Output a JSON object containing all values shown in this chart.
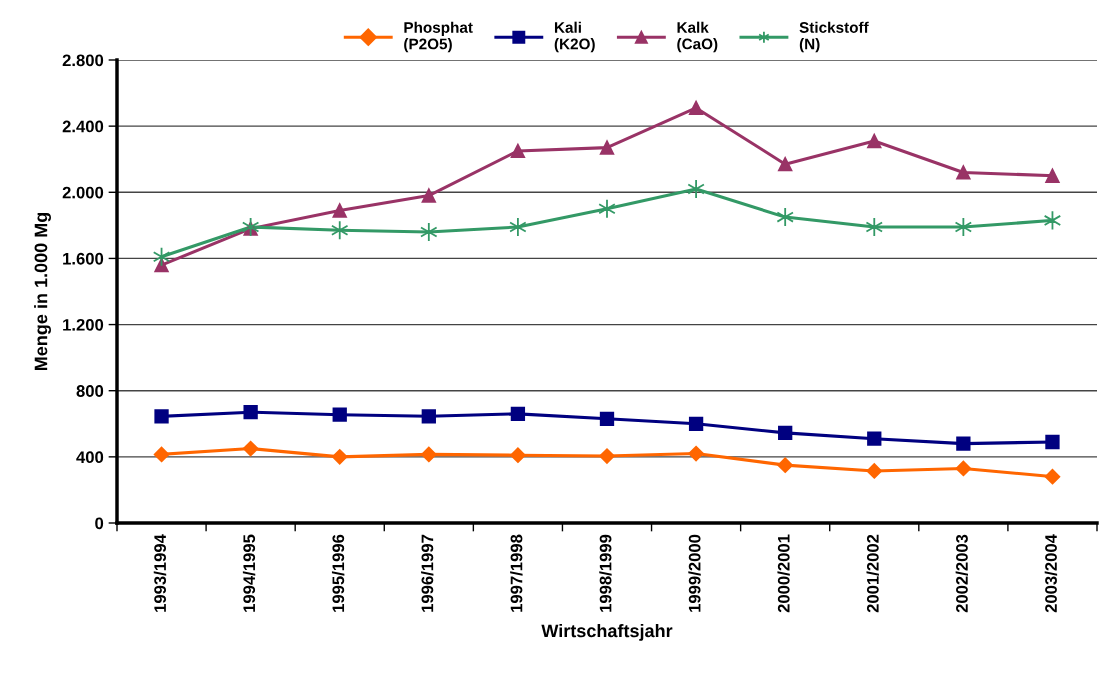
{
  "chart_data": {
    "type": "line",
    "xlabel": "Wirtschaftsjahr",
    "ylabel": "Menge in 1.000 Mg",
    "categories": [
      "1993/1994",
      "1994/1995",
      "1995/1996",
      "1996/1997",
      "1997/1998",
      "1998/1999",
      "1999/2000",
      "2000/2001",
      "2001/2002",
      "2002/2003",
      "2003/2004"
    ],
    "series": [
      {
        "name": "Phosphat\n(P2O5)",
        "color": "#ff6600",
        "marker": "diamond",
        "values": [
          415,
          450,
          400,
          415,
          410,
          405,
          420,
          350,
          315,
          330,
          280
        ]
      },
      {
        "name": "Kali\n(K2O)",
        "color": "#000080",
        "marker": "square",
        "values": [
          645,
          670,
          655,
          645,
          660,
          630,
          600,
          545,
          510,
          480,
          490
        ]
      },
      {
        "name": "Kalk\n(CaO)",
        "color": "#993366",
        "marker": "triangle",
        "values": [
          1560,
          1780,
          1890,
          1980,
          2250,
          2270,
          2510,
          2170,
          2310,
          2120,
          2100
        ]
      },
      {
        "name": "Stickstoff\n(N)",
        "color": "#339966",
        "marker": "cross",
        "values": [
          1610,
          1790,
          1770,
          1760,
          1790,
          1900,
          2020,
          1850,
          1790,
          1790,
          1830
        ]
      }
    ],
    "ylim": [
      0,
      2800
    ],
    "yticks": [
      {
        "value": 0,
        "label": "0"
      },
      {
        "value": 400,
        "label": "400"
      },
      {
        "value": 800,
        "label": "800"
      },
      {
        "value": 1200,
        "label": "1.200"
      },
      {
        "value": 1600,
        "label": "1.600"
      },
      {
        "value": 2000,
        "label": "2.000"
      },
      {
        "value": 2400,
        "label": "2.400"
      },
      {
        "value": 2800,
        "label": "2.800"
      }
    ],
    "grid": "y",
    "legend": "top",
    "line_style": "solid"
  }
}
